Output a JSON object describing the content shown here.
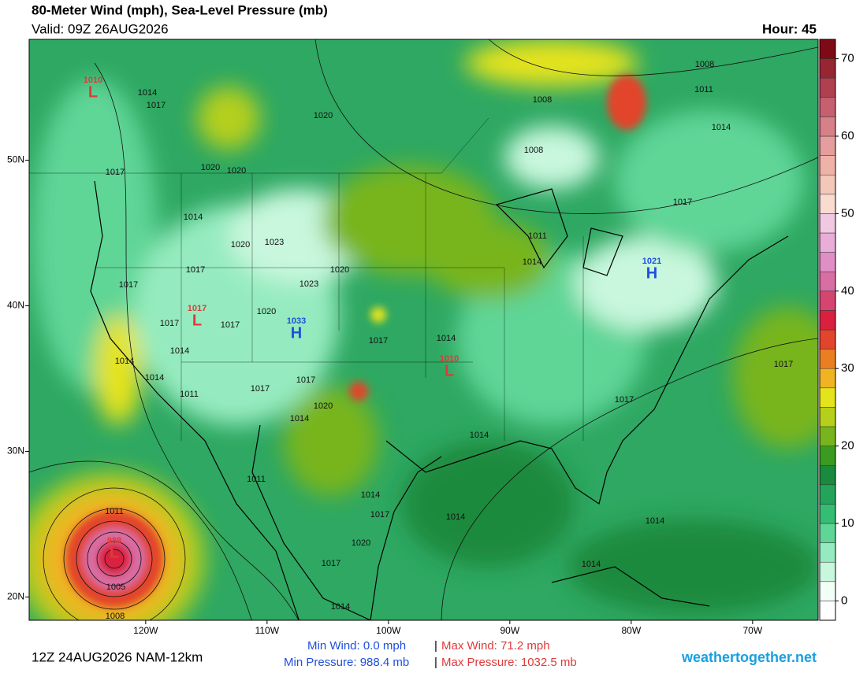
{
  "header": {
    "title": "80-Meter Wind (mph), Sea-Level Pressure (mb)",
    "valid": "Valid: 09Z 26AUG2026",
    "hour": "Hour: 45"
  },
  "colorbar": {
    "lim": [
      -2.5,
      72.5
    ],
    "bounds": [
      -2.5,
      0,
      2.5,
      5,
      7.5,
      10,
      12.5,
      15,
      17.5,
      20,
      22.5,
      25,
      27.5,
      30,
      32.5,
      35,
      37.5,
      40,
      42.5,
      45,
      47.5,
      50,
      52.5,
      55,
      57.5,
      60,
      62.5,
      65,
      67.5,
      70,
      72.5
    ],
    "colors": [
      "#ffffff",
      "#f2fff6",
      "#c8f7dd",
      "#95ebbf",
      "#5fd596",
      "#36bd74",
      "#24a45a",
      "#1a8a3e",
      "#3b9a20",
      "#78b51c",
      "#b5cf1a",
      "#e5e31c",
      "#f0b324",
      "#ea7f22",
      "#e2452c",
      "#d9213f",
      "#d4466f",
      "#d86ea4",
      "#e08fc5",
      "#e8aed8",
      "#f0c8e2",
      "#f8dccf",
      "#f4c8b8",
      "#efb2a6",
      "#e59d9d",
      "#d68088",
      "#c66070",
      "#ae4050",
      "#962632",
      "#7d0a14"
    ],
    "ticks": [
      0,
      10,
      20,
      30,
      40,
      50,
      60,
      70
    ]
  },
  "map": {
    "lat_lim": [
      18.4,
      58.3
    ],
    "lon_lim": [
      -129.6,
      -64.6
    ],
    "lat_ticks": [
      {
        "value": 50,
        "label": "50N"
      },
      {
        "value": 40,
        "label": "40N"
      },
      {
        "value": 30,
        "label": "30N"
      },
      {
        "value": 20,
        "label": "20N"
      }
    ],
    "lon_ticks": [
      {
        "value": -120,
        "label": "120W"
      },
      {
        "value": -110,
        "label": "110W"
      },
      {
        "value": -100,
        "label": "100W"
      },
      {
        "value": -90,
        "label": "90W"
      },
      {
        "value": -80,
        "label": "80W"
      },
      {
        "value": -70,
        "label": "70W"
      }
    ]
  },
  "pressure_centers": [
    {
      "symbol": "L",
      "value": "1010"
    },
    {
      "symbol": "L",
      "value": "1017"
    },
    {
      "symbol": "H",
      "value": "1033"
    },
    {
      "symbol": "L",
      "value": "1010"
    },
    {
      "symbol": "H",
      "value": "1021"
    },
    {
      "symbol": "L",
      "value": "988"
    }
  ],
  "isobar_labels": [
    "1014",
    "1017",
    "1020",
    "1017",
    "1020",
    "1020",
    "1014",
    "1020",
    "1023",
    "1017",
    "1017",
    "1020",
    "1023",
    "1017",
    "1017",
    "1020",
    "1014",
    "1014",
    "1014",
    "1011",
    "1017",
    "1017",
    "1014",
    "1020",
    "1017",
    "1014",
    "1008",
    "1011",
    "1008",
    "1008",
    "1014",
    "1017",
    "1011",
    "1014",
    "1017",
    "1017",
    "1014",
    "1011",
    "1014",
    "1017",
    "1014",
    "1020",
    "1017",
    "1011",
    "1005",
    "1008",
    "1014",
    "1014",
    "1014"
  ],
  "footer": {
    "run": "12Z 24AUG2026 NAM-12km",
    "min_wind": "Min Wind:  0.0 mph",
    "max_wind": "Max Wind: 71.2 mph",
    "min_pressure": "Min Pressure: 988.4 mb",
    "max_pressure": "Max Pressure: 1032.5 mb",
    "separator": "|",
    "site": "weathertogether.net"
  }
}
